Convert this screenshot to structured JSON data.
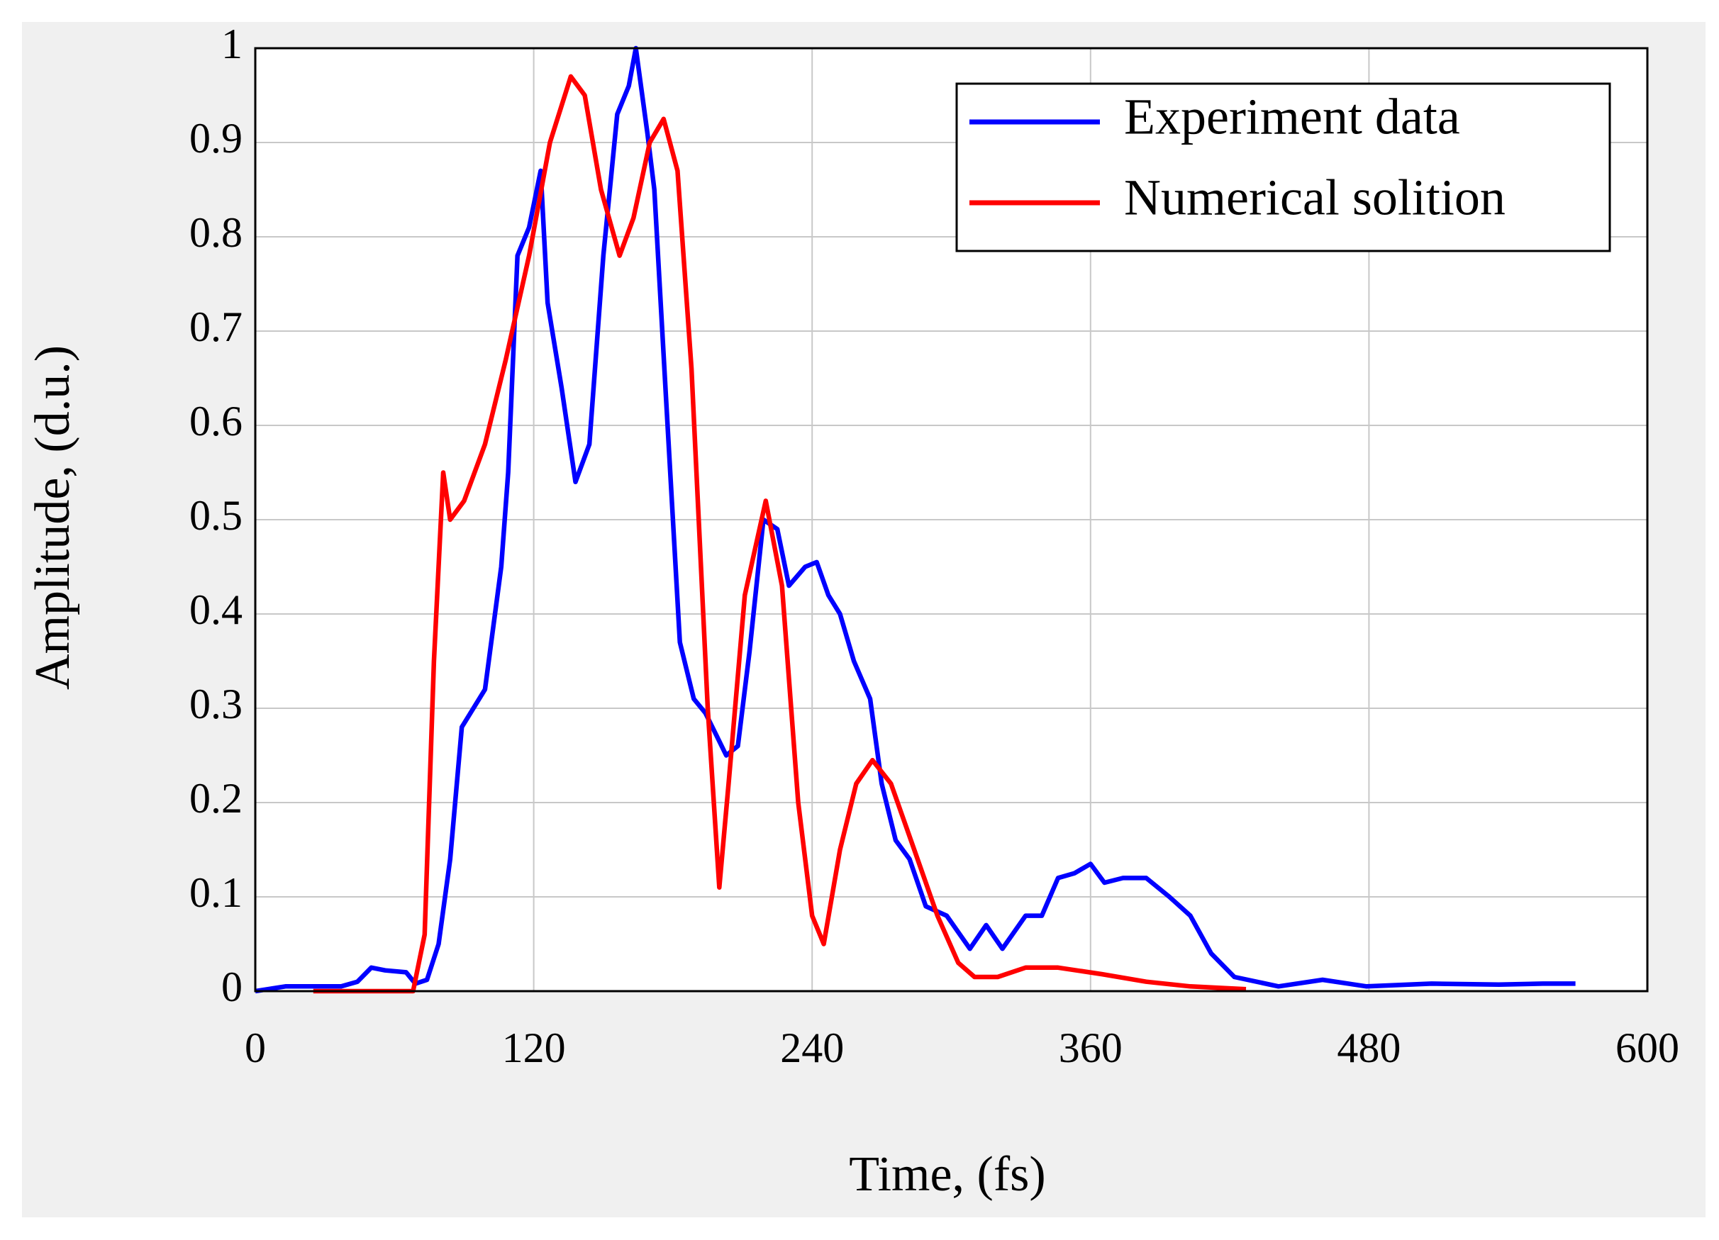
{
  "chart_data": {
    "type": "line",
    "xlabel": "Time, (fs)",
    "ylabel": "Amplitude, (d.u.)",
    "xlim": [
      0,
      600
    ],
    "xticks": [
      0,
      120,
      240,
      360,
      480,
      600
    ],
    "ylim": [
      0,
      1
    ],
    "yticks": [
      0,
      0.1,
      0.2,
      0.3,
      0.4,
      0.5,
      0.6,
      0.7,
      0.8,
      0.9,
      1
    ],
    "grid": true,
    "legend": "upper right",
    "series": [
      {
        "name": "Experiment data",
        "color": "#0000ff",
        "x": [
          0,
          13,
          37,
          44,
          50,
          56,
          65,
          69,
          74,
          79,
          84,
          89,
          99,
          106,
          109,
          113,
          118,
          123,
          126,
          132,
          138,
          144,
          150,
          156,
          161,
          164,
          169,
          172,
          177,
          183,
          189,
          194,
          199,
          203,
          208,
          213,
          219,
          225,
          230,
          237,
          242,
          247,
          252,
          258,
          265,
          270,
          276,
          282,
          289,
          298,
          308,
          315,
          322,
          332,
          339,
          346,
          353,
          360,
          366,
          374,
          384,
          394,
          403,
          412,
          422,
          441,
          460,
          479,
          507,
          536,
          555,
          569
        ],
        "values": [
          0,
          0.005,
          0.005,
          0.01,
          0.025,
          0.022,
          0.02,
          0.008,
          0.012,
          0.05,
          0.14,
          0.28,
          0.32,
          0.45,
          0.55,
          0.78,
          0.81,
          0.87,
          0.73,
          0.64,
          0.54,
          0.58,
          0.78,
          0.93,
          0.96,
          1.0,
          0.91,
          0.85,
          0.63,
          0.37,
          0.31,
          0.295,
          0.27,
          0.25,
          0.26,
          0.36,
          0.5,
          0.49,
          0.43,
          0.45,
          0.455,
          0.42,
          0.4,
          0.35,
          0.31,
          0.22,
          0.16,
          0.14,
          0.09,
          0.08,
          0.045,
          0.07,
          0.045,
          0.08,
          0.08,
          0.12,
          0.125,
          0.135,
          0.115,
          0.12,
          0.12,
          0.1,
          0.08,
          0.04,
          0.015,
          0.005,
          0.012,
          0.005,
          0.008,
          0.007,
          0.008,
          0.008
        ]
      },
      {
        "name": "Numerical solition",
        "color": "#ff0000",
        "x": [
          25,
          68,
          73,
          77,
          81,
          84,
          90,
          99,
          108,
          118,
          127,
          136,
          142,
          149,
          157,
          163,
          170,
          176,
          182,
          188,
          195,
          200,
          204,
          211,
          220,
          227,
          234,
          240,
          245,
          252,
          259,
          266,
          274,
          284,
          294,
          303,
          310,
          320,
          332,
          346,
          365,
          384,
          403,
          427
        ],
        "values": [
          0,
          0,
          0.06,
          0.35,
          0.55,
          0.5,
          0.52,
          0.58,
          0.67,
          0.78,
          0.9,
          0.97,
          0.95,
          0.85,
          0.78,
          0.82,
          0.9,
          0.925,
          0.87,
          0.66,
          0.3,
          0.11,
          0.22,
          0.42,
          0.52,
          0.43,
          0.2,
          0.08,
          0.05,
          0.15,
          0.22,
          0.245,
          0.22,
          0.15,
          0.08,
          0.03,
          0.015,
          0.015,
          0.025,
          0.025,
          0.018,
          0.01,
          0.005,
          0.002
        ]
      }
    ]
  }
}
